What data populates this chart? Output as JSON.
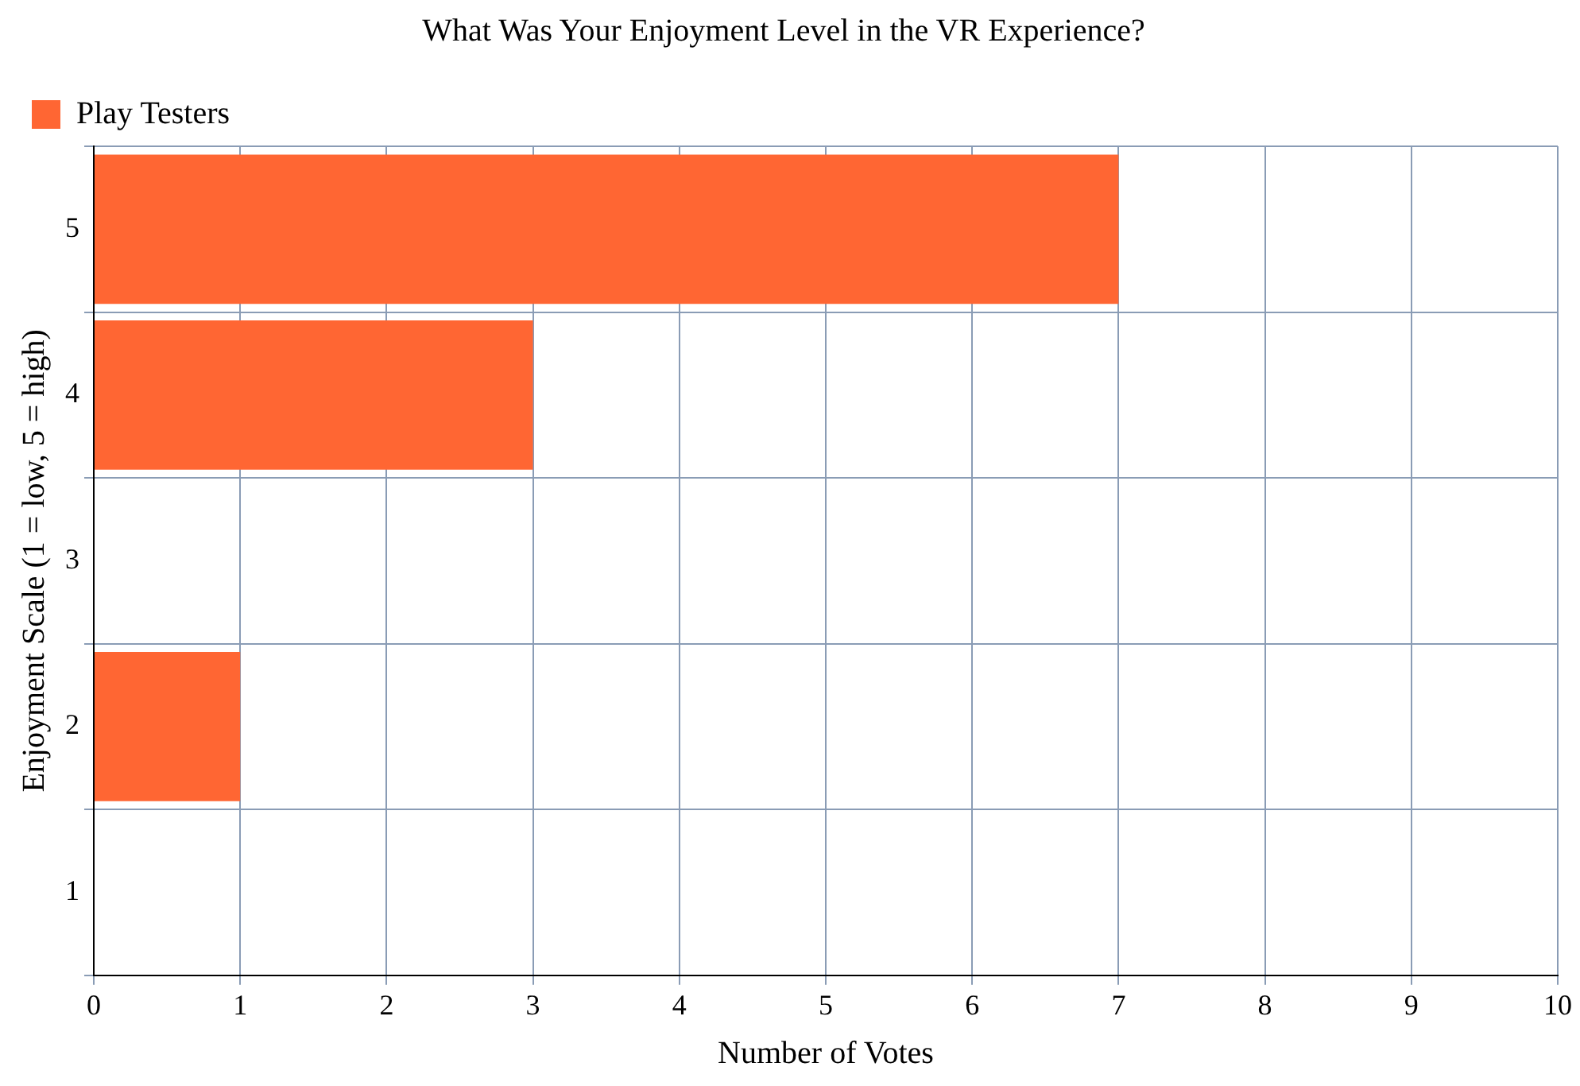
{
  "chart_data": {
    "type": "bar",
    "orientation": "horizontal",
    "title": "What Was Your Enjoyment Level in the VR Experience?",
    "xlabel": "Number of Votes",
    "ylabel": "Enjoyment Scale (1 = low, 5 = high)",
    "categories": [
      "5",
      "4",
      "3",
      "2",
      "1"
    ],
    "series": [
      {
        "name": "Play Testers",
        "color": "#ff6633",
        "values": [
          7,
          3,
          0,
          1,
          0
        ]
      }
    ],
    "xlim": [
      0,
      10
    ],
    "xticks": [
      0,
      1,
      2,
      3,
      4,
      5,
      6,
      7,
      8,
      9,
      10
    ],
    "grid": true,
    "legend": "top left"
  }
}
